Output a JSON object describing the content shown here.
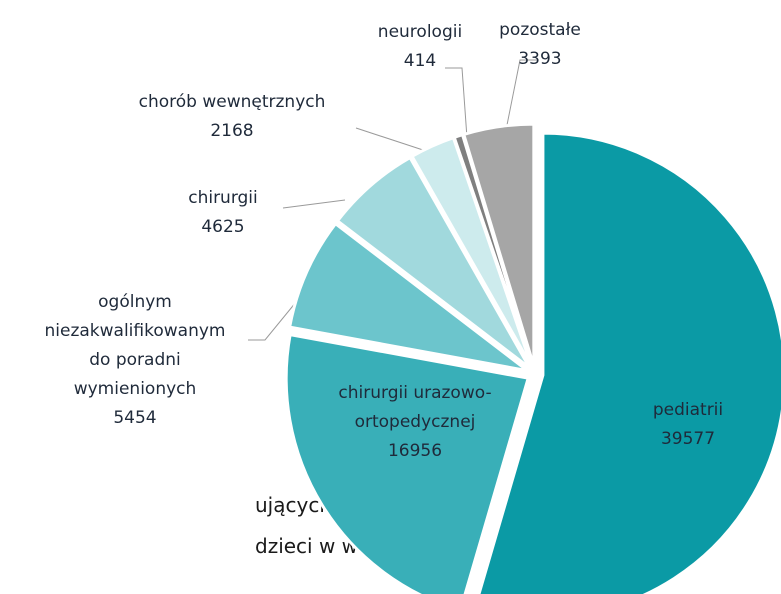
{
  "chart_data": {
    "type": "pie",
    "categories": [
      [
        "pediatrii"
      ],
      [
        "chirurgii urazowo-",
        "ortopedycznej"
      ],
      [
        "ogólnym",
        "niezakwalifikowanym",
        "do poradni",
        "wymienionych"
      ],
      [
        "chirurgii"
      ],
      [
        "chorób wewnętrznych"
      ],
      [
        "neurologii"
      ],
      [
        "pozostałe"
      ]
    ],
    "values": [
      39577,
      16956,
      5454,
      4625,
      2168,
      414,
      3393
    ],
    "colors": [
      "#0b9aa5",
      "#39afb8",
      "#6cc5cc",
      "#a1d9dd",
      "#cdebed",
      "#7f7f7f",
      "#a6a6a6"
    ],
    "text_fragments": [
      "ujących się na terenie",
      "dzieci w wieku do 18"
    ]
  }
}
